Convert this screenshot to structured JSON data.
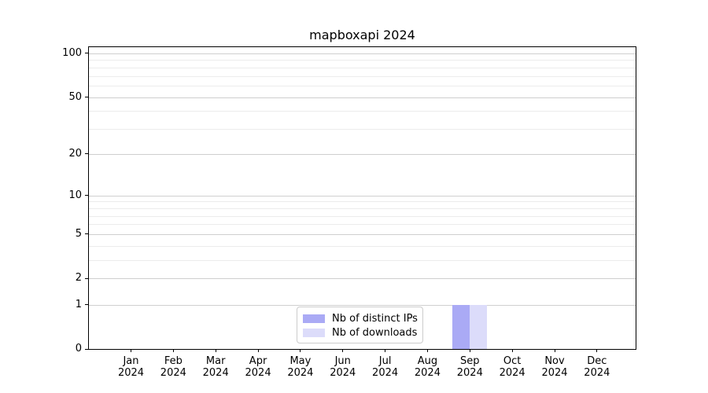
{
  "chart_data": {
    "type": "bar",
    "title": "mapboxapi 2024",
    "categories": [
      "Jan",
      "Feb",
      "Mar",
      "Apr",
      "May",
      "Jun",
      "Jul",
      "Aug",
      "Sep",
      "Oct",
      "Nov",
      "Dec"
    ],
    "x_year": "2024",
    "series": [
      {
        "name": "Nb of distinct IPs",
        "color": "#aaaaf5",
        "values": [
          0,
          0,
          0,
          0,
          0,
          0,
          0,
          0,
          1,
          0,
          0,
          0
        ]
      },
      {
        "name": "Nb of downloads",
        "color": "#dcdcfa",
        "values": [
          0,
          0,
          0,
          0,
          0,
          0,
          0,
          0,
          1,
          0,
          0,
          0
        ]
      }
    ],
    "y_scale": "log1p",
    "y_major_ticks": [
      0,
      1,
      2,
      5,
      10,
      20,
      50,
      100
    ],
    "y_minor_ticks": [
      3,
      4,
      6,
      7,
      8,
      9,
      30,
      40,
      60,
      70,
      80,
      90
    ],
    "ylim": [
      0,
      112
    ],
    "grid": "horizontal",
    "legend_position": "lower-center-inside"
  },
  "colors": {
    "grid_major": "#cfcfcf",
    "grid_minor": "#ececec",
    "spine": "#000000",
    "text": "#000000",
    "legend_border": "#cccccc",
    "background": "#ffffff"
  }
}
